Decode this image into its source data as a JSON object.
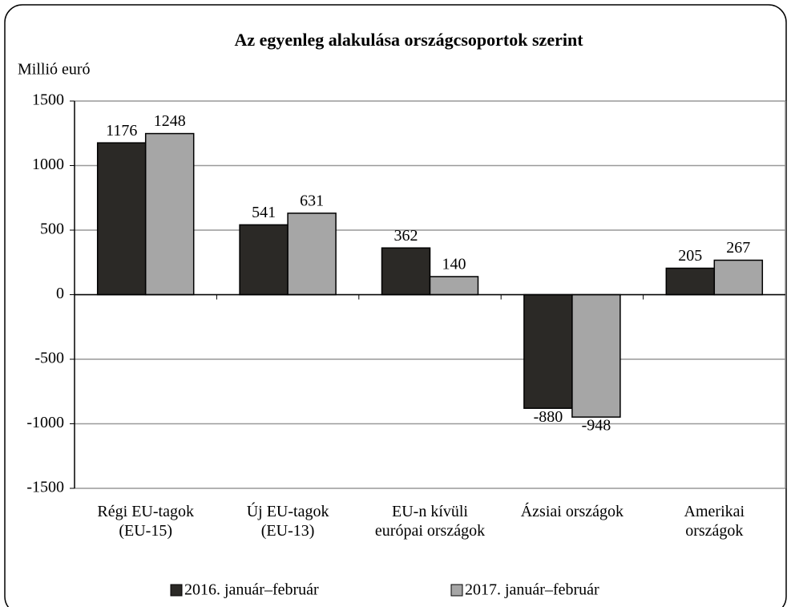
{
  "chart_data": {
    "type": "bar",
    "title": "Az egyenleg alakulása országcsoportok szerint",
    "y_label": "Millió euró",
    "categories": [
      "Régi EU-tagok\n(EU-15)",
      "Új EU-tagok\n(EU-13)",
      "EU-n kívüli\neurópai országok",
      "Ázsiai országok",
      "Amerikai\nországok"
    ],
    "series": [
      {
        "name": "2016. január–február",
        "color": "#2b2926",
        "values": [
          1176,
          541,
          362,
          -880,
          205
        ]
      },
      {
        "name": "2017. január–február",
        "color": "#a6a6a6",
        "values": [
          1248,
          631,
          140,
          -948,
          267
        ]
      }
    ],
    "ylim": [
      -1500,
      1500
    ],
    "yticks": [
      -1500,
      -1000,
      -500,
      0,
      500,
      1000,
      1500
    ],
    "grid": true
  }
}
